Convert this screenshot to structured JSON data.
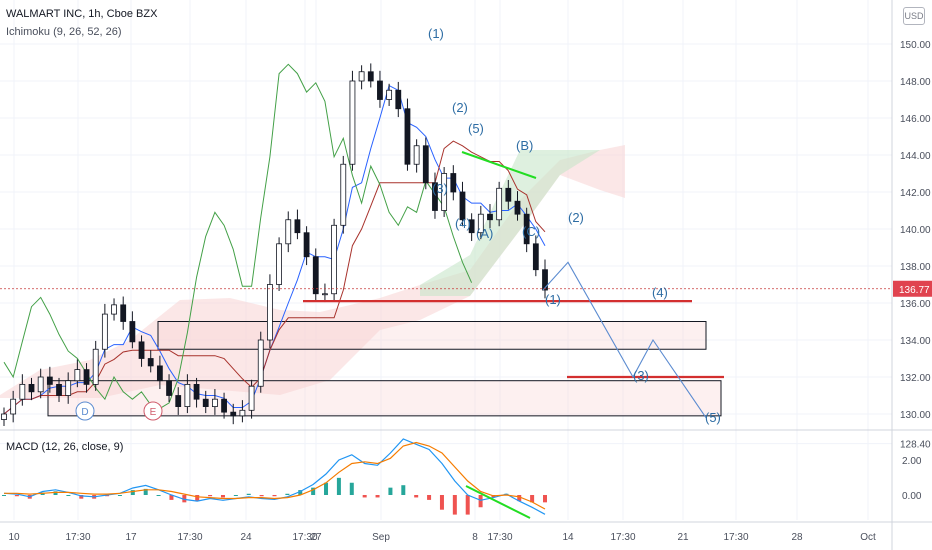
{
  "header": {
    "title": "WALMART INC, 1h, Cboe BZX",
    "indicator": "Ichimoku (9, 26, 52, 26)",
    "currency": "USD"
  },
  "macd": {
    "label": "MACD (12, 26, close, 9)"
  },
  "colors": {
    "price_line": "#2962ff",
    "ichimoku_lagging": "#43a047",
    "ichimoku_base": "#a8322c",
    "cloud_bull": "#c8e6c9",
    "cloud_bear": "#f8d3d3",
    "resistance_red": "#d32f2f",
    "trend_green": "#22dd22",
    "macd_line": "#2196f3",
    "signal_line": "#f57c00",
    "hist_up": "#26a69a",
    "hist_down": "#ef5350",
    "wave_label": "#2e6da4"
  },
  "chart_data": [
    {
      "type": "candlestick",
      "title": "WALMART INC, 1h, Cboe BZX",
      "ylim": [
        128.0,
        151.8
      ],
      "y_ticks": [
        "150.00",
        "148.00",
        "146.00",
        "144.00",
        "142.00",
        "140.00",
        "138.00",
        "136.00",
        "134.00",
        "132.00",
        "130.00",
        "128.40"
      ],
      "x_ticks": [
        "10",
        "17:30",
        "17",
        "17:30",
        "24",
        "17:30",
        "27",
        "Sep",
        "8",
        "17:30",
        "14",
        "17:30",
        "21",
        "17:30",
        "28",
        "Oct"
      ],
      "last_price": "136.77",
      "close_series": [
        130.0,
        130.8,
        131.6,
        131.2,
        132.0,
        131.6,
        131.0,
        131.8,
        132.4,
        131.6,
        133.5,
        135.4,
        135.9,
        135.0,
        133.9,
        133.0,
        132.6,
        131.8,
        131.0,
        130.4,
        131.6,
        130.8,
        130.4,
        130.8,
        130.1,
        129.9,
        130.2,
        131.5,
        134.0,
        137.0,
        139.2,
        140.5,
        139.8,
        138.5,
        136.5,
        136.5,
        140.2,
        143.5,
        148.0,
        148.5,
        148.0,
        147.0,
        147.5,
        146.5,
        143.5,
        144.5,
        142.5,
        141.0,
        143.0,
        142.0,
        140.5,
        139.8,
        140.8,
        140.5,
        142.2,
        141.5,
        140.8,
        139.2,
        137.8,
        136.7
      ],
      "annotations": {
        "wave_labels": [
          "(1)",
          "(2)",
          "(3)",
          "(4)",
          "(5)",
          "(A)",
          "(B)",
          "(C)",
          "(2)",
          "(1)",
          "(4)",
          "(3)",
          "(5)"
        ],
        "circle_labels": [
          "D",
          "E"
        ],
        "projection_path": [
          [
            141.8,
            0
          ],
          [
            138.2,
            1
          ],
          [
            132.0,
            2
          ],
          [
            134.0,
            3
          ],
          [
            129.8,
            4
          ]
        ],
        "resistance_levels": [
          136.1,
          132.0
        ],
        "zones": [
          [
            133.5,
            135.0
          ],
          [
            129.9,
            131.8
          ]
        ]
      }
    },
    {
      "type": "line",
      "title": "MACD (12, 26, close, 9)",
      "y_ticks": [
        "2.00",
        "0.00"
      ],
      "ylim": [
        -1.5,
        3.3
      ],
      "series": [
        {
          "name": "MACD",
          "values": [
            0.1,
            0.05,
            -0.1,
            0.2,
            0.3,
            0.15,
            -0.05,
            -0.1,
            0.0,
            0.1,
            0.4,
            0.55,
            0.3,
            0.0,
            -0.25,
            -0.35,
            -0.2,
            -0.3,
            -0.2,
            -0.1,
            -0.2,
            -0.25,
            -0.1,
            0.2,
            0.6,
            1.2,
            2.0,
            2.3,
            1.8,
            1.7,
            2.4,
            3.2,
            2.9,
            2.6,
            1.8,
            0.8,
            0.0,
            -0.3,
            -0.15,
            0.05,
            -0.35,
            -0.7,
            -1.1
          ]
        },
        {
          "name": "Signal",
          "values": [
            0.1,
            0.1,
            0.05,
            0.1,
            0.15,
            0.15,
            0.1,
            0.05,
            0.05,
            0.1,
            0.2,
            0.3,
            0.3,
            0.2,
            0.05,
            -0.1,
            -0.15,
            -0.2,
            -0.2,
            -0.15,
            -0.15,
            -0.2,
            -0.15,
            0.0,
            0.3,
            0.7,
            1.3,
            1.8,
            1.9,
            1.8,
            2.1,
            2.8,
            3.0,
            2.8,
            2.4,
            1.6,
            0.8,
            0.2,
            -0.05,
            0.0,
            -0.1,
            -0.4,
            -0.8
          ]
        }
      ]
    }
  ]
}
